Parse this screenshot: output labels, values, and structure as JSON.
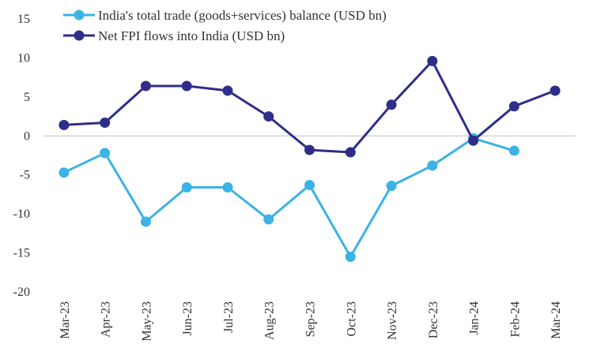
{
  "chart_data": {
    "type": "line",
    "categories": [
      "Mar-23",
      "Apr-23",
      "May-23",
      "Jun-23",
      "Jul-23",
      "Aug-23",
      "Sep-23",
      "Oct-23",
      "Nov-23",
      "Dec-23",
      "Jan-24",
      "Feb-24",
      "Mar-24"
    ],
    "ylim": [
      -20,
      15
    ],
    "yticks": [
      -20,
      -15,
      -10,
      -5,
      0,
      5,
      10,
      15
    ],
    "ytick_labels": [
      "-20",
      "-15",
      "-10",
      "-5",
      "0",
      "5",
      "10",
      "15"
    ],
    "grid": false,
    "legend_position": "top-left",
    "series": [
      {
        "name": "India's total trade (goods+services) balance (USD bn)",
        "color": "#3BB3E4",
        "values": [
          -4.7,
          -2.2,
          -11.0,
          -6.6,
          -6.6,
          -10.7,
          -6.3,
          -15.5,
          -6.4,
          -3.8,
          -0.3,
          -1.9,
          null
        ]
      },
      {
        "name": "Net FPI flows into India (USD bn)",
        "color": "#2E2E8A",
        "values": [
          1.4,
          1.7,
          6.4,
          6.4,
          5.8,
          2.5,
          -1.8,
          -2.1,
          4.0,
          9.6,
          -0.6,
          3.8,
          5.8
        ]
      }
    ]
  }
}
